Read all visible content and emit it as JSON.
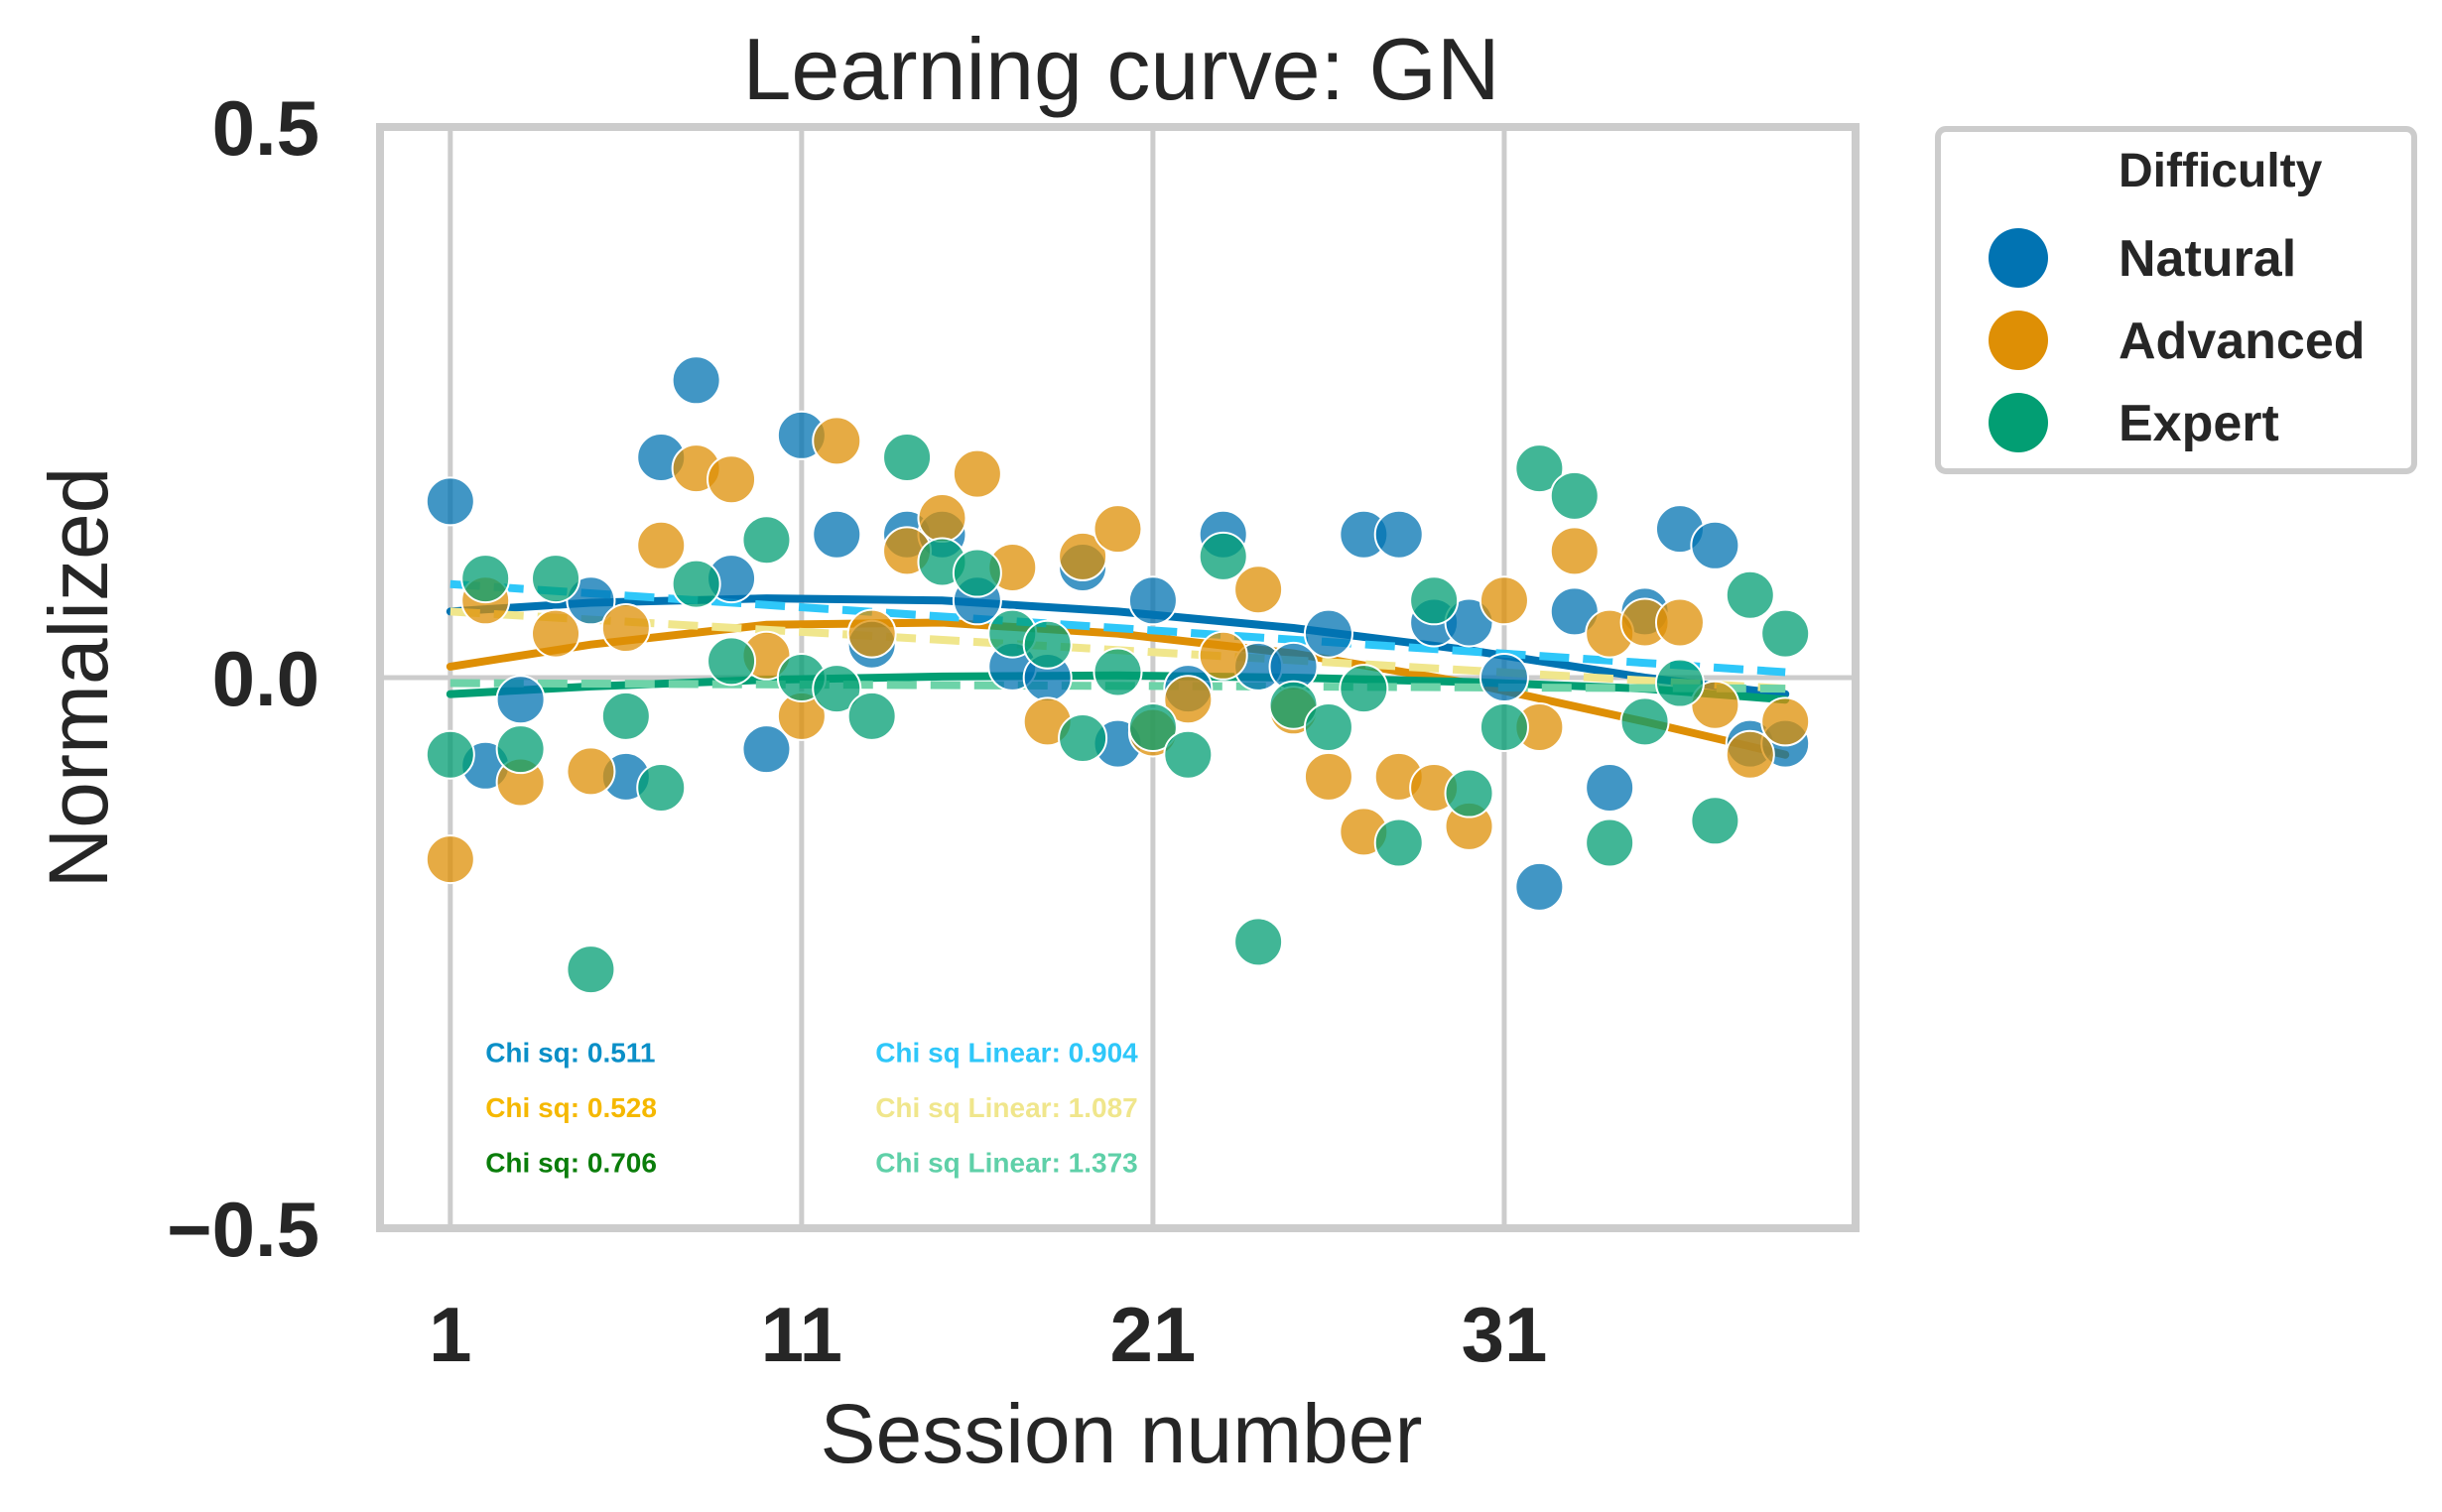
{
  "chart_data": {
    "type": "scatter",
    "title": "Learning curve: GN",
    "xlabel": "Session number",
    "ylabel": "Normalized",
    "xlim": [
      -1,
      41
    ],
    "ylim": [
      -0.5,
      0.5
    ],
    "xticks": [
      1,
      11,
      21,
      31
    ],
    "xtick_labels": [
      "1",
      "11",
      "21",
      "31"
    ],
    "yticks": [
      0.5,
      0.0,
      -0.5
    ],
    "ytick_labels": [
      "0.5",
      "0.0",
      "−0.5"
    ],
    "grid": true,
    "legend": {
      "title": "Difficulty",
      "placement": "outside-right",
      "entries": [
        "Natural",
        "Advanced",
        "Expert"
      ]
    },
    "series": [
      {
        "name": "Natural",
        "color": "#0173b2",
        "x": [
          1,
          2,
          3,
          5,
          6,
          7,
          8,
          9,
          10,
          11,
          12,
          13,
          14,
          15,
          16,
          17,
          18,
          19,
          20,
          21,
          22,
          23,
          24,
          25,
          26,
          27,
          28,
          29,
          30,
          31,
          32,
          33,
          34,
          35,
          36,
          37,
          38,
          39
        ],
        "y": [
          0.16,
          -0.08,
          -0.02,
          0.07,
          -0.09,
          0.2,
          0.27,
          0.09,
          -0.065,
          0.22,
          0.13,
          0.03,
          0.13,
          0.13,
          0.07,
          0.01,
          0.0,
          0.1,
          -0.06,
          0.07,
          -0.01,
          0.13,
          0.01,
          0.01,
          0.04,
          0.13,
          0.13,
          0.05,
          0.05,
          0.0,
          -0.19,
          0.06,
          -0.1,
          0.06,
          0.135,
          0.12,
          -0.06,
          -0.06
        ]
      },
      {
        "name": "Advanced",
        "color": "#de8f05",
        "x": [
          1,
          2,
          3,
          4,
          5,
          6,
          7,
          8,
          9,
          10,
          11,
          12,
          13,
          14,
          15,
          16,
          17,
          18,
          19,
          20,
          21,
          22,
          23,
          24,
          25,
          26,
          27,
          28,
          29,
          30,
          31,
          32,
          33,
          34,
          35,
          36,
          37,
          38,
          39
        ],
        "y": [
          -0.165,
          0.07,
          -0.095,
          0.04,
          -0.085,
          0.045,
          0.12,
          0.19,
          0.18,
          0.02,
          -0.035,
          0.215,
          0.04,
          0.115,
          0.145,
          0.185,
          0.1,
          -0.04,
          0.11,
          0.135,
          -0.05,
          -0.02,
          0.02,
          0.08,
          -0.03,
          -0.09,
          -0.14,
          -0.09,
          -0.1,
          -0.135,
          0.07,
          -0.045,
          0.115,
          0.04,
          0.05,
          0.05,
          -0.025,
          -0.07,
          -0.04
        ]
      },
      {
        "name": "Expert",
        "color": "#029e73",
        "x": [
          1,
          2,
          3,
          4,
          5,
          6,
          7,
          8,
          9,
          10,
          11,
          12,
          13,
          14,
          15,
          16,
          17,
          18,
          19,
          20,
          21,
          22,
          23,
          24,
          25,
          26,
          27,
          28,
          29,
          30,
          31,
          32,
          33,
          34,
          35,
          36,
          37,
          38,
          39
        ],
        "y": [
          -0.07,
          0.09,
          -0.065,
          0.09,
          -0.265,
          -0.035,
          -0.1,
          0.085,
          0.015,
          0.125,
          0.0,
          -0.01,
          -0.035,
          0.2,
          0.105,
          0.095,
          0.04,
          0.03,
          -0.055,
          0.005,
          -0.045,
          -0.07,
          0.11,
          -0.24,
          -0.025,
          -0.045,
          -0.01,
          -0.15,
          0.07,
          -0.105,
          -0.045,
          0.19,
          0.165,
          -0.15,
          -0.04,
          -0.005,
          -0.13,
          0.075,
          0.04
        ]
      }
    ],
    "fits": [
      {
        "name": "Natural fit",
        "style": "solid",
        "color": "#0173b2",
        "x": [
          1,
          5,
          10,
          15,
          20,
          25,
          30,
          35,
          39
        ],
        "y": [
          0.06,
          0.068,
          0.072,
          0.07,
          0.06,
          0.045,
          0.025,
          0.0,
          -0.015
        ]
      },
      {
        "name": "Advanced fit",
        "style": "solid",
        "color": "#de8f05",
        "x": [
          1,
          5,
          10,
          15,
          20,
          25,
          30,
          35,
          39
        ],
        "y": [
          0.01,
          0.03,
          0.048,
          0.05,
          0.04,
          0.022,
          -0.005,
          -0.04,
          -0.07
        ]
      },
      {
        "name": "Expert fit",
        "style": "solid",
        "color": "#029e73",
        "x": [
          1,
          5,
          10,
          15,
          20,
          25,
          30,
          35,
          39
        ],
        "y": [
          -0.015,
          -0.008,
          -0.002,
          0.001,
          0.002,
          0.0,
          -0.004,
          -0.01,
          -0.02
        ]
      },
      {
        "name": "Natural linear",
        "style": "dashed",
        "color": "#2ec7f9",
        "x": [
          1,
          39
        ],
        "y": [
          0.085,
          0.005
        ]
      },
      {
        "name": "Advanced linear",
        "style": "dashed",
        "color": "#f0e68c",
        "x": [
          1,
          39
        ],
        "y": [
          0.06,
          -0.01
        ]
      },
      {
        "name": "Expert linear",
        "style": "dashed",
        "color": "#6dd3a8",
        "x": [
          1,
          39
        ],
        "y": [
          -0.005,
          -0.01
        ]
      }
    ],
    "annotations": [
      {
        "text": "Chi sq: 0.511",
        "color": "#0a8fc7",
        "x": 2,
        "y": -0.34
      },
      {
        "text": "Chi sq: 0.528",
        "color": "#f5b800",
        "x": 2,
        "y": -0.39
      },
      {
        "text": "Chi sq: 0.706",
        "color": "#0a7d0a",
        "x": 2,
        "y": -0.44
      },
      {
        "text": "Chi sq Linear: 0.904",
        "color": "#2ec7f9",
        "x": 13.1,
        "y": -0.34
      },
      {
        "text": "Chi sq Linear: 1.087",
        "color": "#f0e68c",
        "x": 13.1,
        "y": -0.39
      },
      {
        "text": "Chi sq Linear: 1.373",
        "color": "#5fd0a8",
        "x": 13.1,
        "y": -0.44
      }
    ]
  }
}
